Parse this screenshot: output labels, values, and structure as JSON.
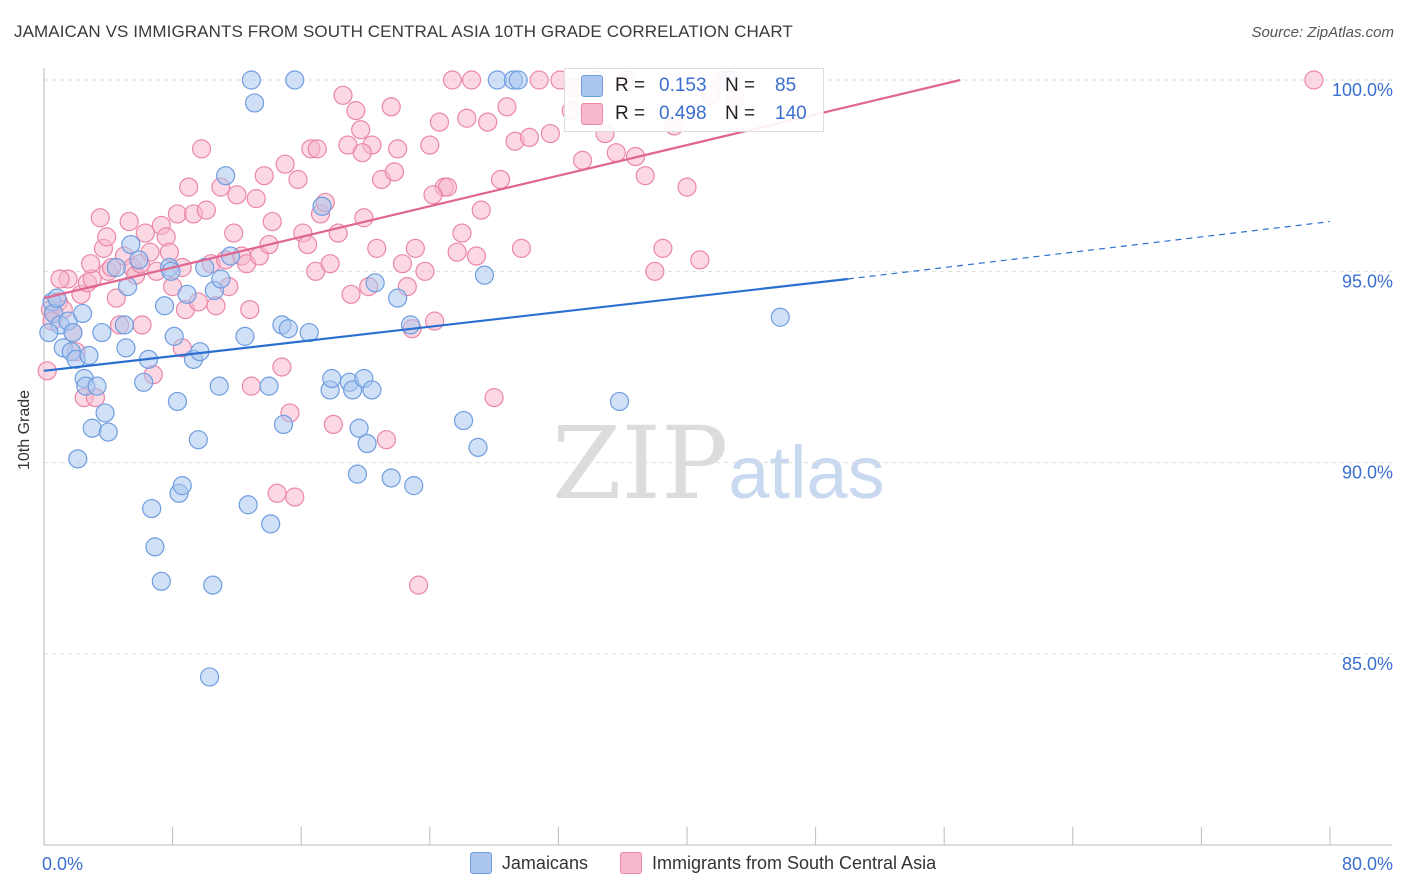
{
  "title": "JAMAICAN VS IMMIGRANTS FROM SOUTH CENTRAL ASIA 10TH GRADE CORRELATION CHART",
  "source": "Source: ZipAtlas.com",
  "watermark": {
    "zip": "ZIP",
    "atlas": "atlas"
  },
  "stats": {
    "rows": [
      {
        "r_label": "R =",
        "r_value": "0.153",
        "n_label": "N =",
        "n_value": "85"
      },
      {
        "r_label": "R =",
        "r_value": "0.498",
        "n_label": "N =",
        "n_value": "140"
      }
    ]
  },
  "legend": {
    "items": [
      {
        "label": "Jamaicans"
      },
      {
        "label": "Immigrants from South Central Asia"
      }
    ]
  },
  "colors": {
    "blue_fill": "#aac6ef",
    "blue_stroke": "#6f9de0",
    "blue_line": "#2a6fcf",
    "pink_fill": "#f7b8cc",
    "pink_stroke": "#eb86a7",
    "pink_line": "#e0668f",
    "tick_label": "#3a6fd0",
    "grid": "#dddddd"
  },
  "chart_data": {
    "type": "scatter",
    "title": "JAMAICAN VS IMMIGRANTS FROM SOUTH CENTRAL ASIA 10TH GRADE CORRELATION CHART",
    "xlabel": "",
    "ylabel": "10th Grade",
    "xlim": [
      0,
      80
    ],
    "ylim": [
      80.8,
      100.8
    ],
    "x_ticks": [
      0,
      80
    ],
    "x_tick_labels": [
      "0.0%",
      "80.0%"
    ],
    "y_ticks": [
      85,
      90,
      95,
      100
    ],
    "y_tick_labels": [
      "85.0%",
      "90.0%",
      "95.0%",
      "100.0%"
    ],
    "grid": true,
    "legend_position": "bottom",
    "series": [
      {
        "name": "Jamaicans",
        "color": "#aac6ef",
        "trend": {
          "x": [
            0,
            50
          ],
          "y": [
            92.4,
            94.8
          ],
          "dashed_extension": {
            "x": [
              50,
              80
            ],
            "y": [
              94.8,
              96.3
            ]
          }
        },
        "points": [
          [
            0.5,
            94.2
          ],
          [
            0.6,
            93.9
          ],
          [
            0.8,
            94.3
          ],
          [
            1.0,
            93.6
          ],
          [
            1.2,
            93.0
          ],
          [
            1.5,
            93.7
          ],
          [
            1.7,
            92.9
          ],
          [
            1.8,
            93.4
          ],
          [
            2.0,
            92.7
          ],
          [
            2.1,
            90.1
          ],
          [
            2.4,
            93.9
          ],
          [
            2.5,
            92.2
          ],
          [
            2.6,
            92.0
          ],
          [
            2.8,
            92.8
          ],
          [
            3.0,
            90.9
          ],
          [
            3.3,
            92.0
          ],
          [
            3.6,
            93.4
          ],
          [
            3.8,
            91.3
          ],
          [
            4.0,
            90.8
          ],
          [
            5.0,
            93.6
          ],
          [
            5.1,
            93.0
          ],
          [
            5.2,
            94.6
          ],
          [
            5.4,
            95.7
          ],
          [
            5.9,
            95.3
          ],
          [
            6.2,
            92.1
          ],
          [
            6.5,
            92.7
          ],
          [
            6.7,
            88.8
          ],
          [
            6.9,
            87.8
          ],
          [
            7.3,
            86.9
          ],
          [
            7.5,
            94.1
          ],
          [
            7.8,
            95.1
          ],
          [
            8.1,
            93.3
          ],
          [
            8.3,
            91.6
          ],
          [
            8.4,
            89.2
          ],
          [
            8.6,
            89.4
          ],
          [
            8.9,
            94.4
          ],
          [
            9.3,
            92.7
          ],
          [
            9.6,
            90.6
          ],
          [
            9.7,
            92.9
          ],
          [
            10.0,
            95.1
          ],
          [
            10.3,
            84.4
          ],
          [
            10.5,
            86.8
          ],
          [
            10.6,
            94.5
          ],
          [
            10.9,
            92.0
          ],
          [
            11.0,
            94.8
          ],
          [
            11.3,
            97.5
          ],
          [
            11.6,
            95.4
          ],
          [
            12.5,
            93.3
          ],
          [
            12.7,
            88.9
          ],
          [
            12.9,
            100.0
          ],
          [
            13.1,
            99.4
          ],
          [
            14.0,
            92.0
          ],
          [
            14.1,
            88.4
          ],
          [
            14.8,
            93.6
          ],
          [
            14.9,
            91.0
          ],
          [
            15.2,
            93.5
          ],
          [
            15.6,
            100.0
          ],
          [
            16.5,
            93.4
          ],
          [
            17.3,
            96.7
          ],
          [
            17.8,
            91.9
          ],
          [
            17.9,
            92.2
          ],
          [
            19.0,
            92.1
          ],
          [
            19.2,
            91.9
          ],
          [
            19.5,
            89.7
          ],
          [
            19.6,
            90.9
          ],
          [
            19.9,
            92.2
          ],
          [
            20.1,
            90.5
          ],
          [
            20.4,
            91.9
          ],
          [
            20.6,
            94.7
          ],
          [
            21.6,
            89.6
          ],
          [
            22.0,
            94.3
          ],
          [
            22.8,
            93.6
          ],
          [
            23.0,
            89.4
          ],
          [
            26.1,
            91.1
          ],
          [
            27.0,
            90.4
          ],
          [
            27.4,
            94.9
          ],
          [
            28.2,
            100.0
          ],
          [
            29.2,
            100.0
          ],
          [
            29.5,
            100.0
          ],
          [
            35.8,
            91.6
          ],
          [
            42.6,
            100.0
          ],
          [
            45.8,
            93.8
          ],
          [
            4.5,
            95.1
          ],
          [
            7.9,
            95.0
          ],
          [
            0.3,
            93.4
          ]
        ]
      },
      {
        "name": "Immigrants from South Central Asia",
        "color": "#f7b8cc",
        "trend": {
          "x": [
            0,
            57
          ],
          "y": [
            94.3,
            100.0
          ]
        },
        "points": [
          [
            0.2,
            92.4
          ],
          [
            0.4,
            94.0
          ],
          [
            0.6,
            93.9
          ],
          [
            0.9,
            94.2
          ],
          [
            1.2,
            94.0
          ],
          [
            1.5,
            94.8
          ],
          [
            1.8,
            93.4
          ],
          [
            2.0,
            92.9
          ],
          [
            2.3,
            94.4
          ],
          [
            2.5,
            91.7
          ],
          [
            2.7,
            94.7
          ],
          [
            3.0,
            94.8
          ],
          [
            3.2,
            91.7
          ],
          [
            3.5,
            96.4
          ],
          [
            3.7,
            95.6
          ],
          [
            4.0,
            95.0
          ],
          [
            4.2,
            95.1
          ],
          [
            4.5,
            94.3
          ],
          [
            4.7,
            93.6
          ],
          [
            5.0,
            95.4
          ],
          [
            5.3,
            96.3
          ],
          [
            5.5,
            95.1
          ],
          [
            5.7,
            94.9
          ],
          [
            6.0,
            95.2
          ],
          [
            6.3,
            96.0
          ],
          [
            6.6,
            95.5
          ],
          [
            6.8,
            92.3
          ],
          [
            7.0,
            95.0
          ],
          [
            7.3,
            96.2
          ],
          [
            7.6,
            95.9
          ],
          [
            7.8,
            95.5
          ],
          [
            8.0,
            94.6
          ],
          [
            8.3,
            96.5
          ],
          [
            8.6,
            95.1
          ],
          [
            8.8,
            94.0
          ],
          [
            9.0,
            97.2
          ],
          [
            9.3,
            96.5
          ],
          [
            9.6,
            94.2
          ],
          [
            9.8,
            98.2
          ],
          [
            10.1,
            96.6
          ],
          [
            10.4,
            95.2
          ],
          [
            10.7,
            94.1
          ],
          [
            11.0,
            97.2
          ],
          [
            11.3,
            95.3
          ],
          [
            11.5,
            94.6
          ],
          [
            11.8,
            96.0
          ],
          [
            12.0,
            97.0
          ],
          [
            12.3,
            95.4
          ],
          [
            12.6,
            95.2
          ],
          [
            12.9,
            92.0
          ],
          [
            13.2,
            96.9
          ],
          [
            13.4,
            95.4
          ],
          [
            13.7,
            97.5
          ],
          [
            14.0,
            95.7
          ],
          [
            14.2,
            96.3
          ],
          [
            14.5,
            89.2
          ],
          [
            14.8,
            92.5
          ],
          [
            15.0,
            97.8
          ],
          [
            15.3,
            91.3
          ],
          [
            15.6,
            89.1
          ],
          [
            15.8,
            97.4
          ],
          [
            16.1,
            96.0
          ],
          [
            16.4,
            95.7
          ],
          [
            16.6,
            98.2
          ],
          [
            16.9,
            95.0
          ],
          [
            17.2,
            96.5
          ],
          [
            17.5,
            96.8
          ],
          [
            17.8,
            95.2
          ],
          [
            18.0,
            91.0
          ],
          [
            18.3,
            96.0
          ],
          [
            18.6,
            99.6
          ],
          [
            18.9,
            98.3
          ],
          [
            19.1,
            94.4
          ],
          [
            19.4,
            99.2
          ],
          [
            19.7,
            98.7
          ],
          [
            19.9,
            96.4
          ],
          [
            20.2,
            94.6
          ],
          [
            20.4,
            98.3
          ],
          [
            20.7,
            95.6
          ],
          [
            21.0,
            97.4
          ],
          [
            21.3,
            90.6
          ],
          [
            21.6,
            99.3
          ],
          [
            21.8,
            97.6
          ],
          [
            22.0,
            98.2
          ],
          [
            22.3,
            95.2
          ],
          [
            22.6,
            94.6
          ],
          [
            22.9,
            93.5
          ],
          [
            23.1,
            95.6
          ],
          [
            23.3,
            86.8
          ],
          [
            23.7,
            95.0
          ],
          [
            24.0,
            98.3
          ],
          [
            24.3,
            93.7
          ],
          [
            24.6,
            98.9
          ],
          [
            24.9,
            97.2
          ],
          [
            25.1,
            97.2
          ],
          [
            25.4,
            100.0
          ],
          [
            25.7,
            95.5
          ],
          [
            26.0,
            96.0
          ],
          [
            26.3,
            99.0
          ],
          [
            26.6,
            100.0
          ],
          [
            26.9,
            95.4
          ],
          [
            27.2,
            96.6
          ],
          [
            27.6,
            98.9
          ],
          [
            28.0,
            91.7
          ],
          [
            28.4,
            97.4
          ],
          [
            28.8,
            99.3
          ],
          [
            29.3,
            98.4
          ],
          [
            29.7,
            95.6
          ],
          [
            30.2,
            98.5
          ],
          [
            30.8,
            100.0
          ],
          [
            31.5,
            98.6
          ],
          [
            32.1,
            100.0
          ],
          [
            32.8,
            99.2
          ],
          [
            33.5,
            97.9
          ],
          [
            34.2,
            100.0
          ],
          [
            34.9,
            98.6
          ],
          [
            35.6,
            98.1
          ],
          [
            36.2,
            100.0
          ],
          [
            36.8,
            98.0
          ],
          [
            37.4,
            97.5
          ],
          [
            38.0,
            95.0
          ],
          [
            38.5,
            95.6
          ],
          [
            39.2,
            98.8
          ],
          [
            40.0,
            97.2
          ],
          [
            40.8,
            95.3
          ],
          [
            41.5,
            99.6
          ],
          [
            42.2,
            100.0
          ],
          [
            43.0,
            99.5
          ],
          [
            79.0,
            100.0
          ],
          [
            17.0,
            98.2
          ],
          [
            12.8,
            94.0
          ],
          [
            8.6,
            93.0
          ],
          [
            6.1,
            93.6
          ],
          [
            3.9,
            95.9
          ],
          [
            2.9,
            95.2
          ],
          [
            1.0,
            94.8
          ],
          [
            0.5,
            93.7
          ],
          [
            19.8,
            98.1
          ],
          [
            24.2,
            97.0
          ],
          [
            33.0,
            99.8
          ]
        ]
      }
    ]
  }
}
